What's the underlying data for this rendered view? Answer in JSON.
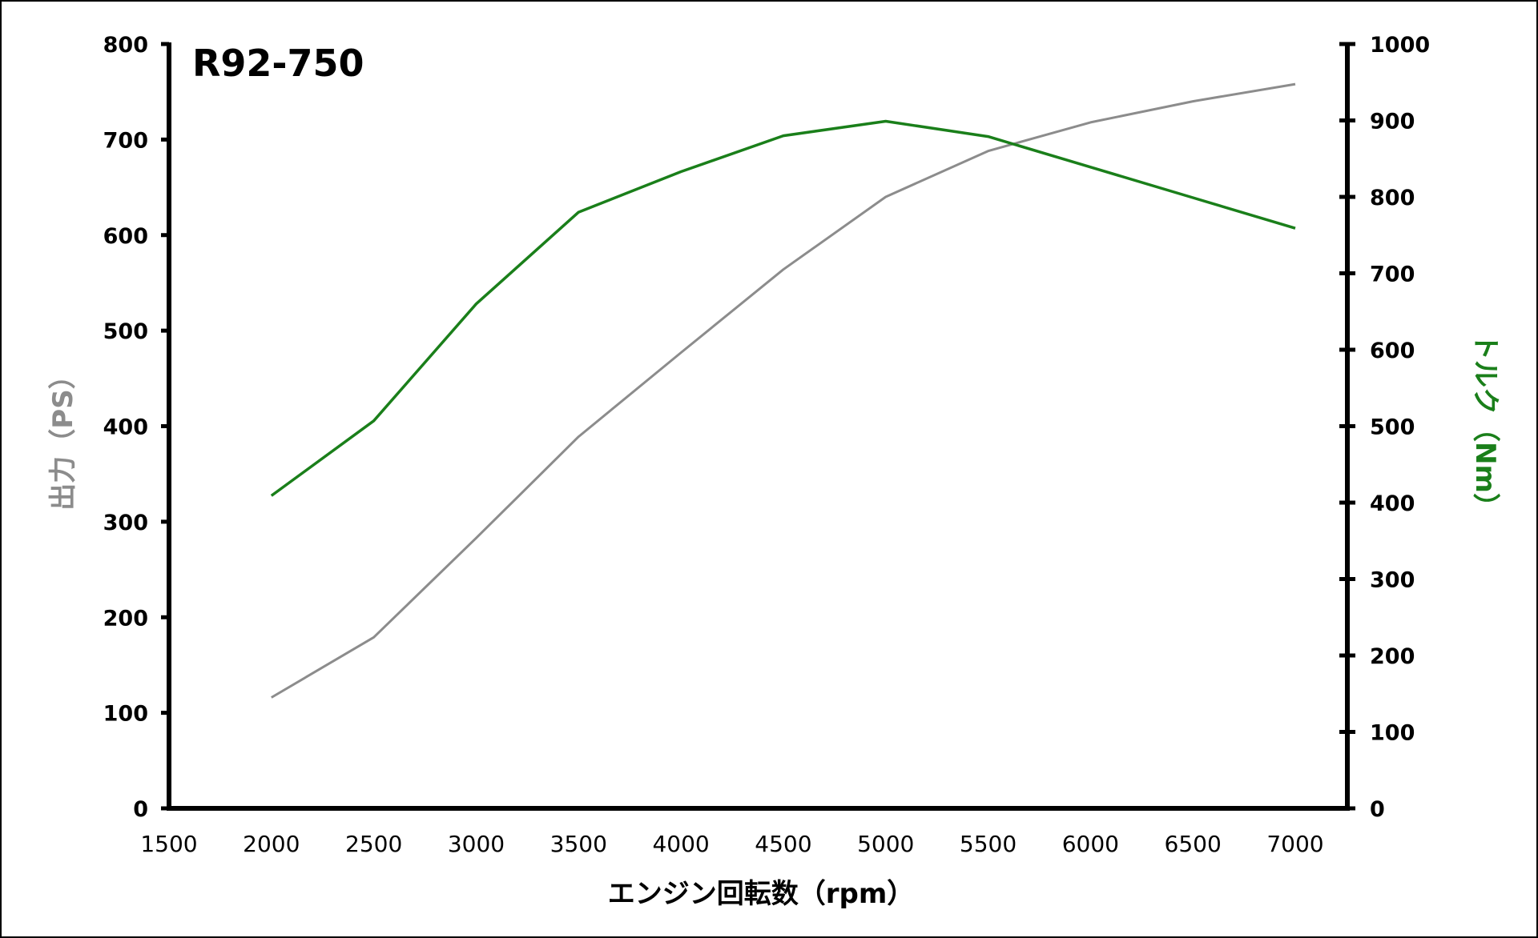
{
  "chart_data": {
    "type": "line",
    "title": "R92-750",
    "xlabel": "エンジン回転数（rpm）",
    "ylabel": "出力（PS）",
    "y2label": "トルク（Nm）",
    "xlim": [
      1500,
      7000
    ],
    "ylim": [
      0,
      800
    ],
    "y2lim": [
      0,
      1000
    ],
    "x_ticks": [
      "1500",
      "2000",
      "2500",
      "3000",
      "3500",
      "4000",
      "4500",
      "5000",
      "5500",
      "6000",
      "6500",
      "7000"
    ],
    "y_ticks": [
      "0",
      "100",
      "200",
      "300",
      "400",
      "500",
      "600",
      "700",
      "800"
    ],
    "y2_ticks": [
      "0",
      "100",
      "200",
      "300",
      "400",
      "500",
      "600",
      "700",
      "800",
      "900",
      "1000"
    ],
    "grid": false,
    "series": [
      {
        "axis": "left",
        "color": "#8c8c8c",
        "x": [
          2000,
          2500,
          3000,
          3500,
          4000,
          4500,
          5000,
          5500,
          6000,
          6500,
          7000
        ],
        "values": [
          116,
          179,
          283,
          389,
          477,
          564,
          640,
          688,
          718,
          740,
          758
        ]
      },
      {
        "axis": "right",
        "color": "#1a7f1a",
        "x": [
          2000,
          2500,
          3000,
          3500,
          4000,
          4500,
          5000,
          5500,
          6000,
          6500,
          7000
        ],
        "values": [
          409,
          507,
          660,
          780,
          833,
          880,
          899,
          879,
          839,
          799,
          759
        ]
      }
    ]
  },
  "colors": {
    "axis": "#000000",
    "power_label": "#8c8c8c",
    "torque_label": "#1a7f1a"
  }
}
